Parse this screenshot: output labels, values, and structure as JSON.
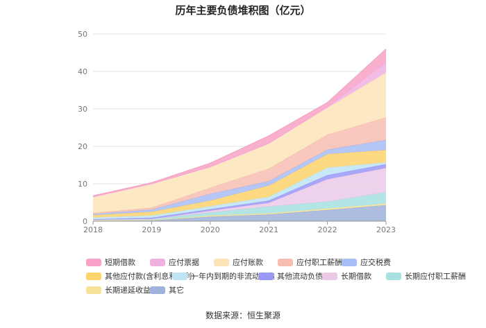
{
  "chart_data": {
    "type": "area",
    "stacked": true,
    "title": "历年主要负债堆积图（亿元）",
    "categories": [
      "2018",
      "2019",
      "2020",
      "2021",
      "2022",
      "2023"
    ],
    "ylim": [
      0,
      50
    ],
    "yticks": [
      0,
      10,
      20,
      30,
      40,
      50
    ],
    "grid": true,
    "legend_position": "bottom",
    "series": [
      {
        "name": "其它",
        "color": "#9fb2db",
        "values": [
          0.1,
          0.2,
          1.2,
          1.8,
          3.0,
          4.3
        ]
      },
      {
        "name": "长期递延收益",
        "color": "#f6e39a",
        "values": [
          0.1,
          0.1,
          0.3,
          0.3,
          0.4,
          0.4
        ]
      },
      {
        "name": "长期应付职工薪酬",
        "color": "#a6e1df",
        "values": [
          0.2,
          0.3,
          0.8,
          1.8,
          1.8,
          3.0
        ]
      },
      {
        "name": "长期借款",
        "color": "#ebc9e6",
        "values": [
          0.0,
          0.0,
          0.5,
          1.0,
          6.0,
          6.5
        ]
      },
      {
        "name": "其他流动负债",
        "color": "#9a98f6",
        "values": [
          0.1,
          0.3,
          0.4,
          0.6,
          1.1,
          1.0
        ]
      },
      {
        "name": "一年内到期的非流动负债",
        "color": "#bfe4f6",
        "values": [
          0.5,
          0.6,
          0.8,
          1.0,
          2.0,
          0.5
        ]
      },
      {
        "name": "其他应付款(含利息和股利)",
        "color": "#fdd36c",
        "values": [
          0.6,
          1.0,
          1.5,
          3.0,
          3.6,
          3.3
        ]
      },
      {
        "name": "应交税费",
        "color": "#a7bdf5",
        "values": [
          0.3,
          0.6,
          1.8,
          1.2,
          1.2,
          2.7
        ]
      },
      {
        "name": "应付职工薪酬",
        "color": "#f7bdb1",
        "values": [
          0.3,
          0.5,
          1.6,
          3.3,
          4.0,
          6.0
        ]
      },
      {
        "name": "应付账款",
        "color": "#fce4b8",
        "values": [
          4.3,
          6.4,
          5.6,
          6.8,
          7.2,
          12.0
        ]
      },
      {
        "name": "应付票据",
        "color": "#f0b1e0",
        "values": [
          0.0,
          0.0,
          0.0,
          0.0,
          0.2,
          2.8
        ]
      },
      {
        "name": "短期借款",
        "color": "#f7a2c6",
        "values": [
          0.3,
          0.3,
          1.0,
          2.0,
          1.2,
          3.5
        ]
      }
    ]
  },
  "source": "数据来源：恒生聚源"
}
